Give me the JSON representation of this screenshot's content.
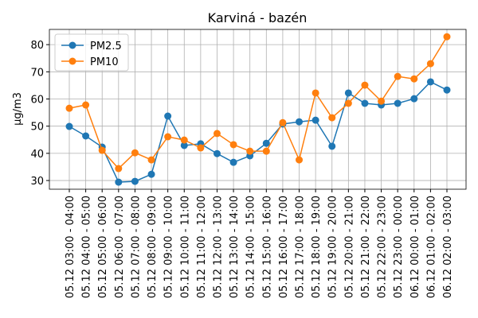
{
  "chart_data": {
    "type": "line",
    "title": "Karviná - bazén",
    "y_label": "µg/m3",
    "categories": [
      "05.12 03:00 - 04:00",
      "05.12 04:00 - 05:00",
      "05.12 05:00 - 06:00",
      "05.12 06:00 - 07:00",
      "05.12 07:00 - 08:00",
      "05.12 08:00 - 09:00",
      "05.12 09:00 - 10:00",
      "05.12 10:00 - 11:00",
      "05.12 11:00 - 12:00",
      "05.12 12:00 - 13:00",
      "05.12 13:00 - 14:00",
      "05.12 14:00 - 15:00",
      "05.12 15:00 - 16:00",
      "05.12 16:00 - 17:00",
      "05.12 17:00 - 18:00",
      "05.12 18:00 - 19:00",
      "05.12 19:00 - 20:00",
      "05.12 20:00 - 21:00",
      "05.12 21:00 - 22:00",
      "05.12 22:00 - 23:00",
      "05.12 23:00 - 00:00",
      "06.12 00:00 - 01:00",
      "06.12 01:00 - 02:00",
      "06.12 02:00 - 03:00"
    ],
    "series": [
      {
        "name": "PM2.5",
        "color": "#1f77b4",
        "values": [
          49.9,
          46.4,
          42.3,
          29.4,
          29.7,
          32.3,
          53.7,
          42.9,
          43.5,
          39.9,
          36.7,
          39.1,
          43.7,
          50.8,
          51.6,
          52.2,
          42.6,
          62.2,
          58.4,
          57.8,
          58.4,
          60.1,
          66.3,
          63.3
        ]
      },
      {
        "name": "PM10",
        "color": "#ff7f0e",
        "values": [
          56.6,
          57.8,
          41.1,
          34.4,
          40.2,
          37.6,
          46.1,
          44.9,
          42.0,
          47.3,
          43.2,
          40.8,
          40.8,
          51.3,
          37.6,
          62.2,
          53.1,
          58.4,
          65.1,
          59.2,
          68.3,
          67.4,
          73.0,
          82.9
        ]
      }
    ],
    "ylim": [
      26.8,
      85.6
    ],
    "yticks": [
      30,
      40,
      50,
      60,
      70,
      80
    ],
    "grid": true,
    "legend": "upper-left"
  }
}
